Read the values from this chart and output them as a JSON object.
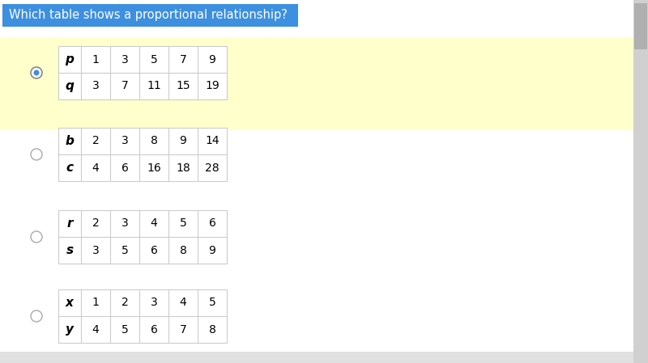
{
  "title": "Which table shows a proportional relationship?",
  "title_bg": "#3d8fe0",
  "title_fg": "#ffffff",
  "page_bg": "#ffffff",
  "outer_bg": "#f5f5f5",
  "selected_bg": "#ffffcc",
  "table_border": "#cccccc",
  "scrollbar_bg": "#d0d0d0",
  "scrollbar_thumb": "#b0b0b0",
  "tables": [
    {
      "row1_label": "p",
      "row1_values": [
        1,
        3,
        5,
        7,
        9
      ],
      "row2_label": "q",
      "row2_values": [
        3,
        7,
        11,
        15,
        19
      ],
      "selected": true
    },
    {
      "row1_label": "b",
      "row1_values": [
        2,
        3,
        8,
        9,
        14
      ],
      "row2_label": "c",
      "row2_values": [
        4,
        6,
        16,
        18,
        28
      ],
      "selected": false
    },
    {
      "row1_label": "r",
      "row1_values": [
        2,
        3,
        4,
        5,
        6
      ],
      "row2_label": "s",
      "row2_values": [
        3,
        5,
        6,
        8,
        9
      ],
      "selected": false
    },
    {
      "row1_label": "x",
      "row1_values": [
        1,
        2,
        3,
        4,
        5
      ],
      "row2_label": "y",
      "row2_values": [
        4,
        5,
        6,
        7,
        8
      ],
      "selected": false
    }
  ],
  "radio_color_selected": "#3d8fe0",
  "radio_color_unselected": "#999999"
}
